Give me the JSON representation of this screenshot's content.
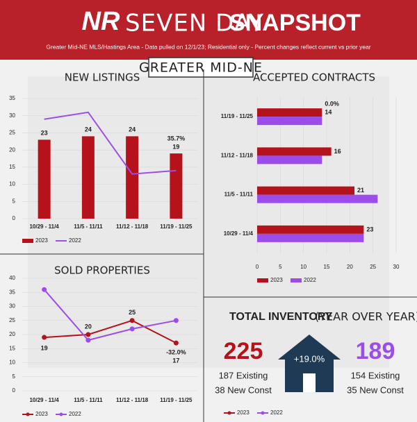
{
  "header": {
    "logo": "NR",
    "title_light": "SEVEN DAY",
    "title_bold": "SNAPSHOT",
    "subtitle": "Greater Mid-NE MLS/Hastings Area - Data pulled on 12/1/23; Residential only - Percent changes reflect current vs prior year",
    "region": "GREATER MID-NE"
  },
  "chart_data": [
    {
      "type": "bar",
      "title": "NEW LISTINGS",
      "categories": [
        "10/29 - 11/4",
        "11/5 - 11/11",
        "11/12 - 11/18",
        "11/19 - 11/25"
      ],
      "series": [
        {
          "name": "2023",
          "color": "#b5121b",
          "type": "bar",
          "values": [
            23,
            24,
            24,
            19
          ]
        },
        {
          "name": "2022",
          "color": "#9b4dea",
          "type": "line",
          "values": [
            29,
            31,
            13,
            14
          ]
        }
      ],
      "ylim": [
        0,
        35
      ],
      "yticks": [
        0,
        5,
        10,
        15,
        20,
        25,
        30,
        35
      ],
      "annotations": [
        "35.7%"
      ]
    },
    {
      "type": "hbar",
      "title": "ACCEPTED CONTRACTS",
      "categories": [
        "11/19 - 11/25",
        "11/12 - 11/18",
        "11/5 - 11/11",
        "10/29 - 11/4"
      ],
      "series": [
        {
          "name": "2023",
          "color": "#b5121b",
          "values": [
            14,
            16,
            21,
            23
          ]
        },
        {
          "name": "2022",
          "color": "#9b4dea",
          "values": [
            14,
            14,
            26,
            23
          ]
        }
      ],
      "xlim": [
        0,
        30
      ],
      "xticks": [
        0,
        5,
        10,
        15,
        20,
        25,
        30
      ],
      "annotations": [
        "0.0%"
      ]
    },
    {
      "type": "line",
      "title": "SOLD PROPERTIES",
      "categories": [
        "10/29 - 11/4",
        "11/5 - 11/11",
        "11/12 - 11/18",
        "11/19 - 11/25"
      ],
      "series": [
        {
          "name": "2023",
          "color": "#b5121b",
          "values": [
            19,
            20,
            25,
            17
          ]
        },
        {
          "name": "2022",
          "color": "#9b4dea",
          "values": [
            36,
            18,
            22,
            25
          ]
        }
      ],
      "ylim": [
        0,
        40
      ],
      "yticks": [
        0,
        5,
        10,
        15,
        20,
        25,
        30,
        35,
        40
      ],
      "annotations": [
        "-32.0%"
      ]
    }
  ],
  "inventory": {
    "title_bold": "TOTAL INVENTORY",
    "title_light": "(YEAR OVER YEAR)",
    "current": {
      "total": "225",
      "existing": "187 Existing",
      "new": "38 New Const"
    },
    "change": "+19.0%",
    "prior": {
      "total": "189",
      "existing": "154 Existing",
      "new": "35 New Const"
    },
    "legend": [
      {
        "name": "2023",
        "color": "#b5121b"
      },
      {
        "name": "2022",
        "color": "#9b4dea"
      }
    ]
  }
}
